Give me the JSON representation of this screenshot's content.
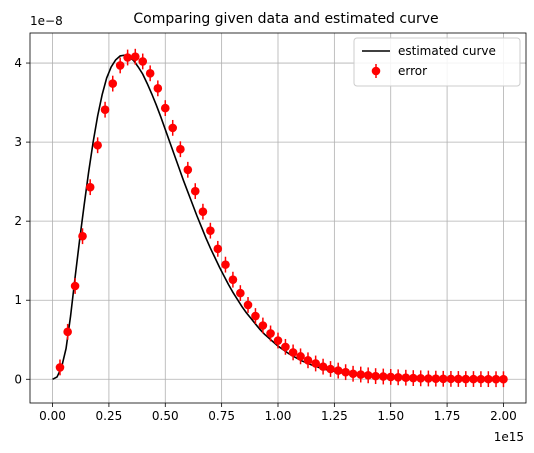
{
  "chart_data": {
    "type": "scatter",
    "title": "Comparing given data and estimated curve",
    "xlabel": "",
    "ylabel": "",
    "x_offset_label": "1e15",
    "y_offset_label": "1e−8",
    "xlim": [
      -0.1,
      2.1
    ],
    "ylim": [
      -0.3,
      4.38
    ],
    "xticks": [
      0.0,
      0.25,
      0.5,
      0.75,
      1.0,
      1.25,
      1.5,
      1.75,
      2.0
    ],
    "xtick_labels": [
      "0.00",
      "0.25",
      "0.50",
      "0.75",
      "1.00",
      "1.25",
      "1.50",
      "1.75",
      "2.00"
    ],
    "yticks": [
      0,
      1,
      2,
      3,
      4
    ],
    "ytick_labels": [
      "0",
      "1",
      "2",
      "3",
      "4"
    ],
    "grid": true,
    "legend_position": "top-right",
    "curve": {
      "name": "estimated curve",
      "color": "#000000",
      "x": [
        0.0,
        0.02,
        0.04,
        0.06,
        0.08,
        0.1,
        0.12,
        0.14,
        0.16,
        0.18,
        0.2,
        0.22,
        0.24,
        0.26,
        0.28,
        0.3,
        0.32,
        0.34,
        0.36,
        0.38,
        0.4,
        0.42,
        0.44,
        0.46,
        0.48,
        0.5,
        0.52,
        0.54,
        0.56,
        0.58,
        0.6,
        0.62,
        0.64,
        0.66,
        0.68,
        0.7,
        0.72,
        0.74,
        0.76,
        0.78,
        0.8,
        0.82,
        0.84,
        0.86,
        0.88,
        0.9,
        0.92,
        0.94,
        0.96,
        0.98,
        1.0,
        1.05,
        1.1,
        1.15,
        1.2,
        1.25,
        1.3,
        1.35,
        1.4,
        1.5,
        1.6,
        1.7,
        1.8,
        1.9,
        2.0
      ],
      "y": [
        0.0,
        0.03,
        0.15,
        0.39,
        0.8,
        1.29,
        1.76,
        2.2,
        2.62,
        3.0,
        3.33,
        3.6,
        3.81,
        3.95,
        4.04,
        4.09,
        4.1,
        4.08,
        4.03,
        3.95,
        3.86,
        3.74,
        3.61,
        3.47,
        3.32,
        3.16,
        3.0,
        2.84,
        2.68,
        2.52,
        2.37,
        2.22,
        2.07,
        1.93,
        1.79,
        1.66,
        1.54,
        1.42,
        1.31,
        1.2,
        1.1,
        1.01,
        0.92,
        0.84,
        0.77,
        0.7,
        0.63,
        0.57,
        0.52,
        0.47,
        0.42,
        0.32,
        0.24,
        0.18,
        0.13,
        0.1,
        0.07,
        0.05,
        0.04,
        0.02,
        0.01,
        0.005,
        0.003,
        0.002,
        0.001
      ]
    },
    "points": {
      "name": "error",
      "color": "#ff0000",
      "x": [
        0.033,
        0.067,
        0.1,
        0.133,
        0.167,
        0.2,
        0.233,
        0.267,
        0.3,
        0.333,
        0.367,
        0.4,
        0.433,
        0.467,
        0.5,
        0.533,
        0.567,
        0.6,
        0.633,
        0.667,
        0.7,
        0.733,
        0.767,
        0.8,
        0.833,
        0.867,
        0.9,
        0.933,
        0.967,
        1.0,
        1.033,
        1.067,
        1.1,
        1.133,
        1.167,
        1.2,
        1.233,
        1.267,
        1.3,
        1.333,
        1.367,
        1.4,
        1.433,
        1.467,
        1.5,
        1.533,
        1.567,
        1.6,
        1.633,
        1.667,
        1.7,
        1.733,
        1.767,
        1.8,
        1.833,
        1.867,
        1.9,
        1.933,
        1.967,
        2.0
      ],
      "y": [
        0.15,
        0.6,
        1.18,
        1.81,
        2.43,
        2.96,
        3.41,
        3.74,
        3.97,
        4.07,
        4.08,
        4.02,
        3.87,
        3.68,
        3.43,
        3.18,
        2.91,
        2.65,
        2.38,
        2.12,
        1.88,
        1.65,
        1.45,
        1.26,
        1.09,
        0.94,
        0.8,
        0.68,
        0.58,
        0.49,
        0.41,
        0.34,
        0.29,
        0.24,
        0.2,
        0.16,
        0.13,
        0.11,
        0.09,
        0.07,
        0.06,
        0.05,
        0.04,
        0.035,
        0.03,
        0.025,
        0.02,
        0.015,
        0.012,
        0.01,
        0.008,
        0.006,
        0.005,
        0.004,
        0.003,
        0.003,
        0.002,
        0.002,
        0.001,
        0.001
      ],
      "yerr": 0.1
    }
  }
}
